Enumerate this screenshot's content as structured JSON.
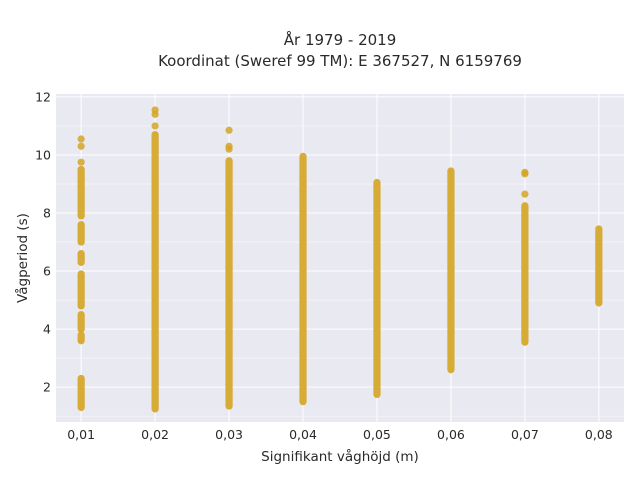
{
  "chart_data": {
    "type": "scatter",
    "title": "År 1979 - 2019",
    "subtitle": "Koordinat (Sweref 99 TM): E 367527, N 6159769",
    "xlabel": "Signifikant våghöjd (m)",
    "ylabel": "Vågperiod (s)",
    "x_ticks": [
      "0,01",
      "0,02",
      "0,03",
      "0,04",
      "0,05",
      "0,06",
      "0,07",
      "0,08"
    ],
    "y_ticks": [
      2,
      4,
      6,
      8,
      10,
      12
    ],
    "xlim": [
      0.0066,
      0.0834
    ],
    "ylim": [
      0.8,
      12.1
    ],
    "grid": true,
    "legend": "none",
    "marker_color": "#d4a526",
    "plot_background": "#e9e9f1",
    "series": [
      {
        "x": 0.01,
        "segments": [
          [
            1.3,
            2.3
          ],
          [
            3.6,
            3.8
          ],
          [
            4.0,
            4.5
          ],
          [
            4.8,
            5.9
          ],
          [
            6.3,
            6.6
          ],
          [
            7.0,
            7.6
          ],
          [
            7.9,
            9.5
          ]
        ],
        "points": [
          9.75,
          10.3,
          10.55
        ]
      },
      {
        "x": 0.02,
        "segments": [
          [
            1.25,
            10.7
          ]
        ],
        "points": [
          11.0,
          11.4,
          11.55
        ]
      },
      {
        "x": 0.03,
        "segments": [
          [
            1.35,
            9.8
          ]
        ],
        "points": [
          10.2,
          10.3,
          10.85
        ]
      },
      {
        "x": 0.04,
        "segments": [
          [
            1.5,
            9.95
          ]
        ],
        "points": []
      },
      {
        "x": 0.05,
        "segments": [
          [
            1.75,
            9.05
          ]
        ],
        "points": []
      },
      {
        "x": 0.06,
        "segments": [
          [
            2.6,
            9.45
          ]
        ],
        "points": []
      },
      {
        "x": 0.07,
        "segments": [
          [
            3.55,
            8.25
          ]
        ],
        "points": [
          8.65,
          9.35,
          9.4
        ]
      },
      {
        "x": 0.08,
        "segments": [
          [
            4.9,
            7.45
          ]
        ],
        "points": []
      }
    ]
  }
}
